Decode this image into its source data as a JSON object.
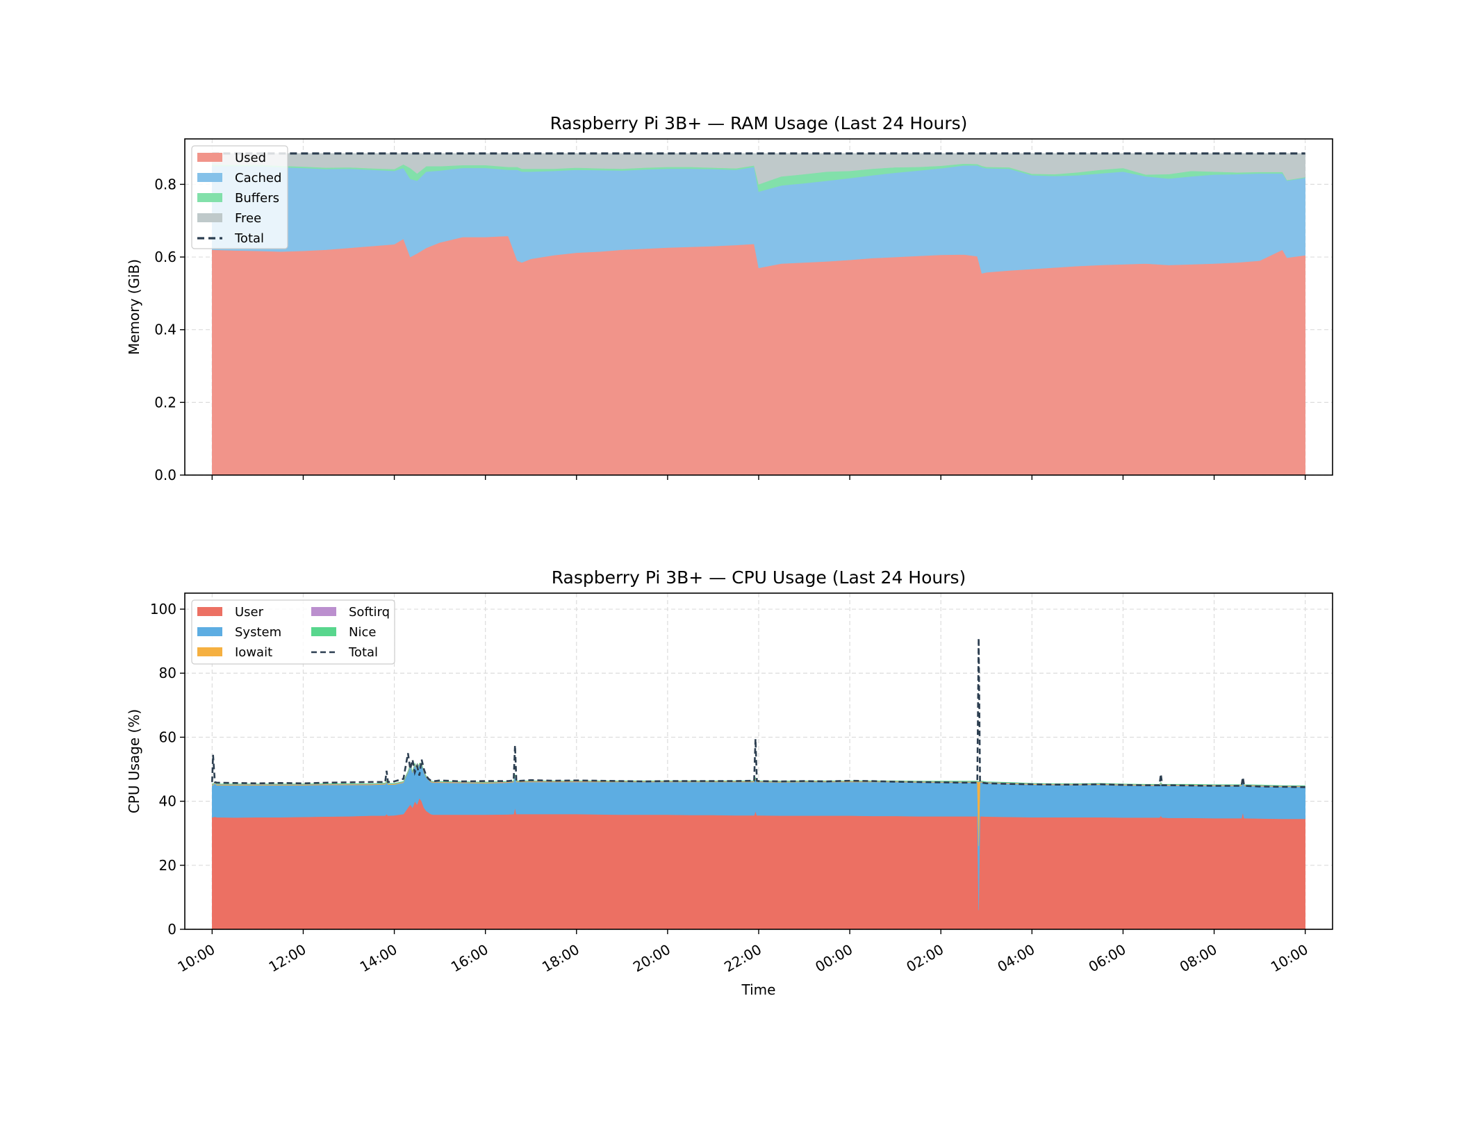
{
  "colors": {
    "used": "#f1948a",
    "cached": "#85c1e9",
    "buffers": "#82e0aa",
    "free": "#bfc9ca",
    "total": "#2c3e50",
    "user": "#ec7063",
    "system": "#5dade2",
    "iowait": "#f5b041",
    "softirq": "#bb8fce",
    "nice": "#58d68d",
    "grid": "#dcdcdc"
  },
  "chart_data": [
    {
      "type": "area",
      "stacked": true,
      "title": "Raspberry Pi 3B+ — RAM Usage (Last 24 Hours)",
      "xlabel": "",
      "ylabel": "Memory (GiB)",
      "ylim": [
        0,
        0.925
      ],
      "yticks": [
        0.0,
        0.2,
        0.4,
        0.6,
        0.8
      ],
      "ytick_labels": [
        "0.0",
        "0.2",
        "0.4",
        "0.6",
        "0.8"
      ],
      "xlim": [
        -0.6,
        24.6
      ],
      "x_unit": "hours since 10:00",
      "xticks": [
        0,
        2,
        4,
        6,
        8,
        10,
        12,
        14,
        16,
        18,
        20,
        22,
        24
      ],
      "grid": true,
      "legend": {
        "placement": "upper-left",
        "entries": [
          "Used",
          "Cached",
          "Buffers",
          "Free",
          "Total"
        ]
      },
      "x": [
        0,
        0.5,
        1,
        1.5,
        2,
        2.5,
        3,
        3.5,
        4,
        4.2,
        4.35,
        4.5,
        4.7,
        5,
        5.5,
        6,
        6.5,
        6.7,
        6.8,
        7,
        7.5,
        8,
        8.5,
        9,
        9.5,
        10,
        10.5,
        11,
        11.5,
        11.9,
        12,
        12.5,
        13,
        13.5,
        14,
        14.5,
        15,
        15.5,
        16,
        16.5,
        16.8,
        16.9,
        17,
        17.5,
        18,
        18.5,
        19,
        19.5,
        20,
        20.5,
        21,
        21.5,
        22,
        22.5,
        23,
        23.5,
        23.6,
        24
      ],
      "series": [
        {
          "name": "Used",
          "values": [
            0.62,
            0.618,
            0.617,
            0.615,
            0.617,
            0.62,
            0.625,
            0.63,
            0.635,
            0.65,
            0.6,
            0.61,
            0.625,
            0.64,
            0.655,
            0.655,
            0.658,
            0.59,
            0.585,
            0.595,
            0.605,
            0.612,
            0.615,
            0.62,
            0.623,
            0.626,
            0.628,
            0.63,
            0.633,
            0.636,
            0.57,
            0.582,
            0.585,
            0.588,
            0.592,
            0.597,
            0.6,
            0.603,
            0.606,
            0.607,
            0.602,
            0.555,
            0.558,
            0.563,
            0.567,
            0.571,
            0.575,
            0.578,
            0.58,
            0.582,
            0.578,
            0.58,
            0.582,
            0.585,
            0.59,
            0.62,
            0.598,
            0.605
          ]
        },
        {
          "name": "Cached",
          "values": [
            0.23,
            0.232,
            0.233,
            0.232,
            0.228,
            0.222,
            0.218,
            0.21,
            0.202,
            0.195,
            0.215,
            0.2,
            0.21,
            0.198,
            0.19,
            0.19,
            0.182,
            0.25,
            0.25,
            0.24,
            0.232,
            0.228,
            0.224,
            0.218,
            0.218,
            0.217,
            0.215,
            0.212,
            0.207,
            0.212,
            0.21,
            0.215,
            0.218,
            0.222,
            0.225,
            0.228,
            0.232,
            0.235,
            0.238,
            0.245,
            0.25,
            0.292,
            0.286,
            0.28,
            0.258,
            0.252,
            0.25,
            0.252,
            0.255,
            0.24,
            0.238,
            0.242,
            0.245,
            0.243,
            0.24,
            0.21,
            0.212,
            0.213
          ]
        },
        {
          "name": "Buffers",
          "values": [
            0.004,
            0.004,
            0.004,
            0.004,
            0.004,
            0.004,
            0.004,
            0.004,
            0.005,
            0.01,
            0.03,
            0.02,
            0.015,
            0.012,
            0.008,
            0.008,
            0.008,
            0.008,
            0.008,
            0.008,
            0.006,
            0.006,
            0.005,
            0.005,
            0.005,
            0.005,
            0.005,
            0.004,
            0.004,
            0.004,
            0.02,
            0.025,
            0.025,
            0.025,
            0.02,
            0.018,
            0.015,
            0.01,
            0.007,
            0.005,
            0.004,
            0.004,
            0.004,
            0.004,
            0.004,
            0.005,
            0.008,
            0.01,
            0.01,
            0.005,
            0.012,
            0.015,
            0.008,
            0.005,
            0.004,
            0.004,
            0.002,
            0.002
          ]
        },
        {
          "name": "Free",
          "values": [
            0.031,
            0.031,
            0.031,
            0.034,
            0.036,
            0.039,
            0.038,
            0.041,
            0.043,
            0.03,
            0.04,
            0.055,
            0.035,
            0.035,
            0.032,
            0.032,
            0.037,
            0.037,
            0.042,
            0.042,
            0.042,
            0.039,
            0.041,
            0.042,
            0.039,
            0.037,
            0.037,
            0.039,
            0.041,
            0.033,
            0.085,
            0.063,
            0.057,
            0.05,
            0.048,
            0.042,
            0.038,
            0.037,
            0.034,
            0.028,
            0.029,
            0.034,
            0.037,
            0.038,
            0.056,
            0.057,
            0.052,
            0.045,
            0.04,
            0.058,
            0.057,
            0.048,
            0.05,
            0.052,
            0.051,
            0.051,
            0.073,
            0.065
          ]
        },
        {
          "name": "Total",
          "values": [
            0.885,
            0.885,
            0.885,
            0.885,
            0.885,
            0.885,
            0.885,
            0.885,
            0.885,
            0.885,
            0.885,
            0.885,
            0.885,
            0.885,
            0.885,
            0.885,
            0.885,
            0.885,
            0.885,
            0.885,
            0.885,
            0.885,
            0.885,
            0.885,
            0.885,
            0.885,
            0.885,
            0.885,
            0.885,
            0.885,
            0.885,
            0.885,
            0.885,
            0.885,
            0.885,
            0.885,
            0.885,
            0.885,
            0.885,
            0.885,
            0.885,
            0.885,
            0.885,
            0.885,
            0.885,
            0.885,
            0.885,
            0.885,
            0.885,
            0.885,
            0.885,
            0.885,
            0.885,
            0.885,
            0.885,
            0.885,
            0.885,
            0.885
          ]
        }
      ]
    },
    {
      "type": "area",
      "stacked": true,
      "title": "Raspberry Pi 3B+ — CPU Usage (Last 24 Hours)",
      "xlabel": "Time",
      "ylabel": "CPU Usage (%)",
      "ylim": [
        0,
        105
      ],
      "yticks": [
        0,
        20,
        40,
        60,
        80,
        100
      ],
      "ytick_labels": [
        "0",
        "20",
        "40",
        "60",
        "80",
        "100"
      ],
      "xlim": [
        -0.6,
        24.6
      ],
      "x_unit": "hours since 10:00",
      "xticks": [
        0,
        2,
        4,
        6,
        8,
        10,
        12,
        14,
        16,
        18,
        20,
        22,
        24
      ],
      "xtick_labels": [
        "10:00",
        "12:00",
        "14:00",
        "16:00",
        "18:00",
        "20:00",
        "22:00",
        "00:00",
        "02:00",
        "04:00",
        "06:00",
        "08:00",
        "10:00"
      ],
      "grid": true,
      "legend": {
        "placement": "upper-left",
        "columns": 2,
        "entries": [
          "User",
          "System",
          "Iowait",
          "Softirq",
          "Nice",
          "Total"
        ]
      },
      "x": [
        0,
        0.02,
        0.06,
        0.1,
        0.5,
        1,
        1.5,
        2,
        2.5,
        3,
        3.5,
        3.8,
        3.83,
        3.86,
        4,
        4.2,
        4.25,
        4.3,
        4.35,
        4.4,
        4.45,
        4.5,
        4.55,
        4.6,
        4.65,
        4.7,
        4.75,
        4.8,
        4.85,
        4.9,
        5,
        5.5,
        6,
        6.5,
        6.62,
        6.65,
        6.68,
        7,
        7.5,
        8,
        8.5,
        9,
        9.5,
        10,
        10.5,
        11,
        11.5,
        11.9,
        11.93,
        11.96,
        12,
        12.5,
        13,
        13.5,
        14,
        14.5,
        15,
        15.5,
        16,
        16.5,
        16.8,
        16.83,
        16.86,
        16.9,
        17,
        17.5,
        18,
        18.5,
        19,
        19.5,
        20,
        20.5,
        20.8,
        20.83,
        20.86,
        21,
        21.5,
        22,
        22.5,
        22.6,
        22.63,
        22.66,
        23,
        23.5,
        24
      ],
      "series": [
        {
          "name": "User",
          "values": [
            35,
            35,
            35.2,
            35,
            34.9,
            35,
            35,
            35.1,
            35.2,
            35.3,
            35.5,
            35.5,
            36,
            35.5,
            35.6,
            36,
            37,
            38,
            39,
            38,
            40,
            39,
            41,
            40,
            38,
            37,
            36.5,
            36,
            35.8,
            35.8,
            35.8,
            35.8,
            35.8,
            35.9,
            36,
            38,
            36,
            36,
            36,
            36,
            35.9,
            35.8,
            35.8,
            35.8,
            35.7,
            35.7,
            35.6,
            35.6,
            37,
            35.6,
            35.6,
            35.5,
            35.5,
            35.5,
            35.5,
            35.4,
            35.4,
            35.3,
            35.3,
            35.3,
            35.3,
            6,
            35.3,
            35.3,
            35.2,
            35.1,
            35,
            35,
            35,
            35,
            34.9,
            34.9,
            34.9,
            35.5,
            34.9,
            34.8,
            34.8,
            34.7,
            34.7,
            34.7,
            36.5,
            34.7,
            34.6,
            34.5,
            34.5
          ]
        },
        {
          "name": "System",
          "values": [
            10,
            10,
            10.5,
            10,
            10.1,
            10,
            10,
            9.9,
            9.9,
            9.8,
            9.6,
            9.8,
            10,
            9.7,
            9.6,
            9.8,
            10.5,
            11,
            12,
            11,
            11.5,
            11,
            10.5,
            11.5,
            11,
            10.5,
            10.2,
            10,
            10,
            10,
            10,
            9.9,
            9.8,
            9.9,
            10,
            10,
            10,
            10,
            10,
            10,
            10.1,
            10.2,
            10.2,
            10.2,
            10.3,
            10.3,
            10.4,
            10.4,
            10,
            10.4,
            10.4,
            10.4,
            10.5,
            10.5,
            10.5,
            10.6,
            10.6,
            10.6,
            10.6,
            10.6,
            10.6,
            20,
            10.6,
            10.6,
            10.5,
            10.4,
            10.2,
            10.1,
            10.1,
            10.2,
            10.1,
            10,
            10,
            10,
            10,
            10.1,
            10.1,
            10.1,
            10.1,
            10.1,
            10,
            10.1,
            10.1,
            10,
            10
          ]
        },
        {
          "name": "Iowait",
          "values": [
            0.2,
            0.2,
            0.2,
            0.2,
            0.2,
            0.2,
            0.2,
            0.2,
            0.2,
            0.2,
            0.2,
            0.2,
            0.2,
            0.2,
            0.2,
            0.2,
            0.2,
            0.2,
            0.2,
            0.2,
            0.2,
            0.2,
            0.2,
            0.2,
            0.2,
            0.2,
            0.2,
            0.2,
            0.2,
            0.2,
            0.2,
            0.2,
            0.2,
            0.2,
            0.2,
            0.2,
            0.2,
            0.2,
            0.2,
            0.2,
            0.2,
            0.2,
            0.2,
            0.2,
            0.2,
            0.2,
            0.2,
            0.2,
            0.2,
            0.2,
            0.2,
            0.2,
            0.2,
            0.2,
            0.2,
            0.2,
            0.2,
            0.2,
            0.2,
            0.2,
            0.2,
            20,
            0.2,
            0.2,
            0.2,
            0.2,
            0.2,
            0.2,
            0.2,
            0.2,
            0.2,
            0.2,
            0.2,
            0.2,
            0.2,
            0.2,
            0.2,
            0.2,
            0.2,
            0.2,
            0.2,
            0.2,
            0.2,
            0.2,
            0.2
          ]
        },
        {
          "name": "Softirq",
          "values": [
            0.1,
            0.1,
            0.1,
            0.1,
            0.1,
            0.1,
            0.1,
            0.1,
            0.1,
            0.1,
            0.1,
            0.1,
            0.1,
            0.1,
            0.1,
            0.1,
            0.1,
            0.1,
            0.1,
            0.1,
            0.1,
            0.1,
            0.1,
            0.1,
            0.1,
            0.1,
            0.1,
            0.1,
            0.1,
            0.1,
            0.1,
            0.1,
            0.1,
            0.1,
            0.1,
            0.1,
            0.1,
            0.1,
            0.1,
            0.1,
            0.1,
            0.1,
            0.1,
            0.1,
            0.1,
            0.1,
            0.1,
            0.1,
            0.1,
            0.1,
            0.1,
            0.1,
            0.1,
            0.1,
            0.1,
            0.1,
            0.1,
            0.1,
            0.1,
            0.1,
            0.1,
            0.1,
            0.1,
            0.1,
            0.1,
            0.1,
            0.1,
            0.1,
            0.1,
            0.1,
            0.1,
            0.1,
            0.1,
            0.1,
            0.1,
            0.1,
            0.1,
            0.1,
            0.1,
            0.1,
            0.1,
            0.1,
            0.1,
            0.1,
            0.1
          ]
        },
        {
          "name": "Nice",
          "values": [
            0.1,
            0.1,
            0.1,
            0.1,
            0.1,
            0.1,
            0.1,
            0.1,
            0.1,
            0.1,
            0.1,
            0.1,
            0.1,
            0.1,
            0.1,
            0.1,
            0.1,
            0.1,
            0.1,
            0.1,
            0.1,
            0.1,
            0.1,
            0.1,
            0.1,
            0.1,
            0.1,
            0.1,
            0.1,
            0.1,
            0.1,
            0.1,
            0.1,
            0.1,
            0.1,
            0.1,
            0.1,
            0.1,
            0.1,
            0.1,
            0.1,
            0.1,
            0.1,
            0.1,
            0.1,
            0.1,
            0.1,
            0.1,
            0.1,
            0.1,
            0.1,
            0.1,
            0.1,
            0.1,
            0.1,
            0.1,
            0.1,
            0.1,
            0.1,
            0.1,
            0.1,
            0.1,
            0.1,
            0.1,
            0.1,
            0.1,
            0.1,
            0.1,
            0.1,
            0.1,
            0.1,
            0.1,
            0.1,
            0.1,
            0.1,
            0.1,
            0.1,
            0.1,
            0.1,
            0.1,
            0.1,
            0.1,
            0.1,
            0.1,
            0.1
          ]
        },
        {
          "name": "Total",
          "values": [
            46,
            54.5,
            46,
            45.8,
            45.7,
            45.6,
            45.7,
            45.6,
            45.8,
            45.9,
            46,
            46,
            49.5,
            46,
            46.2,
            47,
            51,
            55,
            50,
            53,
            49,
            51,
            48,
            53,
            50,
            48,
            47,
            46.5,
            46.3,
            46.3,
            46.5,
            46.2,
            46.3,
            46.3,
            46.5,
            57.5,
            46.3,
            46.6,
            46.4,
            46.5,
            46.4,
            46.3,
            46.2,
            46.3,
            46.3,
            46.3,
            46.3,
            46.4,
            59.5,
            46.4,
            46.3,
            46.2,
            46.3,
            46.2,
            46.4,
            46.3,
            46.1,
            46,
            45.9,
            45.8,
            45.8,
            91,
            46,
            45.8,
            45.6,
            45.4,
            45.3,
            45.2,
            45.2,
            45.3,
            45.1,
            45,
            45,
            48.5,
            45,
            45,
            44.9,
            44.8,
            44.8,
            44.8,
            47.5,
            44.8,
            44.6,
            44.5,
            44.4
          ]
        }
      ]
    }
  ]
}
